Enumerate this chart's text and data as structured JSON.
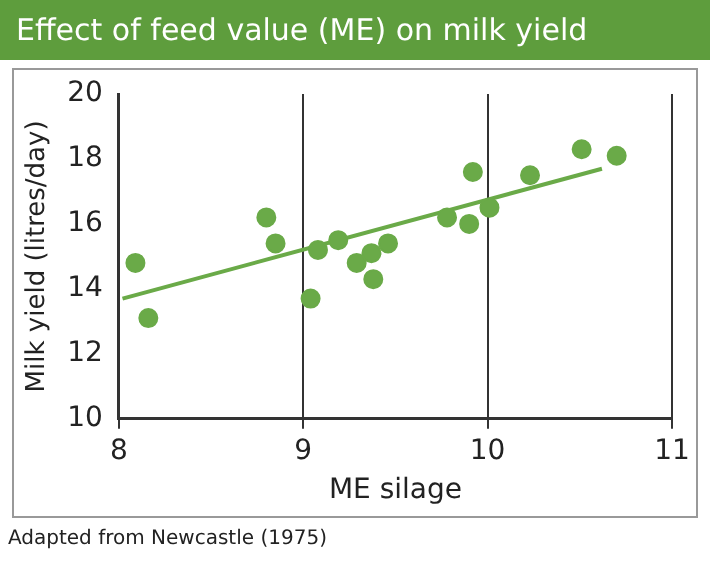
{
  "chart_data": {
    "type": "scatter",
    "title": "Effect of feed value (ME) on milk yield",
    "xlabel": "ME silage",
    "ylabel": "Milk yield (litres/day)",
    "annotations": [
      "Adapted from Newcastle (1975)"
    ],
    "xlim": [
      8,
      11
    ],
    "xticks": [
      8,
      9,
      10,
      11
    ],
    "ylim": [
      10,
      20
    ],
    "yticks": [
      10,
      12,
      14,
      16,
      18,
      20
    ],
    "grid": "x",
    "legend": false,
    "marker": "circle",
    "series": [
      {
        "type": "scatter",
        "color": "#6aaa48",
        "x": [
          8.09,
          8.16,
          8.8,
          8.85,
          9.04,
          9.08,
          9.19,
          9.29,
          9.37,
          9.38,
          9.46,
          9.78,
          9.9,
          9.92,
          10.01,
          10.23,
          10.51,
          10.7
        ],
        "values": [
          14.8,
          13.1,
          16.2,
          15.4,
          13.7,
          15.2,
          15.5,
          14.8,
          15.1,
          14.3,
          15.4,
          16.2,
          16.0,
          17.6,
          16.5,
          17.5,
          18.3,
          18.1
        ]
      },
      {
        "type": "line",
        "color": "#6aaa48",
        "marker": "none",
        "x": [
          8.02,
          10.62
        ],
        "values": [
          13.7,
          17.7
        ]
      }
    ]
  }
}
